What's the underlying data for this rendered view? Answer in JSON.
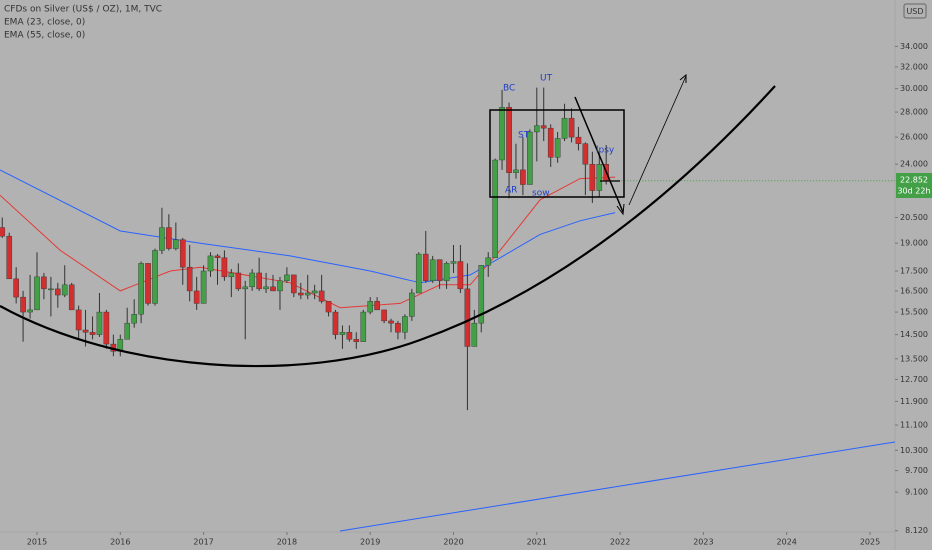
{
  "chart_data": {
    "type": "candlestick",
    "title": "CFDs on Silver (US$ / OZ), 1M, TVC",
    "currency": "USD",
    "log_scale": true,
    "up_color": "#43a047",
    "down_color": "#d32f2f",
    "x": [
      2014.583,
      2014.667,
      2014.75,
      2014.833,
      2014.917,
      2015.0,
      2015.083,
      2015.167,
      2015.25,
      2015.333,
      2015.417,
      2015.5,
      2015.583,
      2015.667,
      2015.75,
      2015.833,
      2015.917,
      2016.0,
      2016.083,
      2016.167,
      2016.25,
      2016.333,
      2016.417,
      2016.5,
      2016.583,
      2016.667,
      2016.75,
      2016.833,
      2016.917,
      2017.0,
      2017.083,
      2017.167,
      2017.25,
      2017.333,
      2017.417,
      2017.5,
      2017.583,
      2017.667,
      2017.75,
      2017.833,
      2017.917,
      2018.0,
      2018.083,
      2018.167,
      2018.25,
      2018.333,
      2018.417,
      2018.5,
      2018.583,
      2018.667,
      2018.75,
      2018.833,
      2018.917,
      2019.0,
      2019.083,
      2019.167,
      2019.25,
      2019.333,
      2019.417,
      2019.5,
      2019.583,
      2019.667,
      2019.75,
      2019.833,
      2019.917,
      2020.0,
      2020.083,
      2020.167,
      2020.25,
      2020.333,
      2020.417,
      2020.5,
      2020.583,
      2020.667,
      2020.75,
      2020.833,
      2020.917,
      2021.0,
      2021.083,
      2021.167,
      2021.25,
      2021.333,
      2021.417,
      2021.5,
      2021.583,
      2021.667,
      2021.75,
      2021.833
    ],
    "open": [
      19.9,
      19.4,
      17.1,
      16.2,
      15.5,
      15.6,
      17.2,
      16.6,
      16.6,
      16.3,
      16.8,
      15.6,
      14.7,
      14.6,
      14.5,
      15.5,
      14.1,
      13.8,
      14.3,
      15.0,
      15.4,
      17.9,
      15.9,
      18.6,
      19.9,
      18.7,
      19.2,
      17.7,
      16.5,
      15.9,
      17.5,
      18.3,
      18.2,
      17.2,
      17.4,
      16.6,
      16.7,
      17.4,
      16.6,
      16.7,
      16.5,
      17.0,
      17.3,
      16.4,
      16.3,
      16.4,
      16.5,
      16.0,
      15.5,
      14.5,
      14.6,
      14.3,
      14.2,
      15.5,
      16.0,
      15.6,
      15.1,
      15.0,
      14.6,
      15.3,
      16.4,
      18.4,
      17.0,
      18.1,
      17.0,
      17.9,
      18.0,
      16.6,
      14.0,
      15.0,
      17.8,
      18.2,
      24.3,
      28.4,
      23.4,
      23.6,
      22.6,
      26.4,
      26.9,
      26.7,
      24.5,
      25.9,
      27.5,
      26.0,
      25.5,
      24.0,
      22.2,
      24.0
    ],
    "high": [
      20.5,
      19.6,
      17.7,
      16.5,
      17.3,
      18.5,
      17.4,
      17.2,
      16.9,
      17.8,
      16.9,
      15.8,
      15.6,
      15.3,
      16.4,
      15.6,
      14.5,
      14.5,
      15.7,
      16.1,
      18.0,
      17.9,
      18.7,
      21.1,
      20.7,
      20.2,
      19.3,
      18.9,
      17.2,
      17.8,
      18.5,
      18.4,
      18.6,
      17.6,
      17.9,
      17.0,
      17.6,
      18.2,
      17.4,
      17.3,
      17.2,
      17.7,
      17.3,
      16.9,
      17.3,
      16.8,
      17.3,
      16.0,
      15.6,
      14.9,
      14.9,
      14.6,
      15.6,
      16.2,
      16.2,
      15.6,
      15.2,
      15.1,
      15.4,
      16.6,
      18.5,
      19.7,
      18.3,
      18.1,
      18.0,
      18.9,
      18.9,
      17.9,
      15.6,
      17.8,
      18.5,
      24.4,
      29.9,
      28.8,
      25.5,
      26.0,
      26.6,
      30.1,
      30.1,
      27.0,
      26.4,
      28.7,
      28.3,
      26.8,
      25.6,
      24.9,
      24.8,
      25.4
    ],
    "low": [
      19.3,
      17.1,
      15.9,
      14.2,
      15.2,
      15.6,
      16.1,
      15.3,
      15.7,
      16.2,
      15.6,
      14.3,
      14.0,
      14.3,
      14.4,
      13.9,
      13.6,
      13.6,
      14.3,
      14.8,
      15.0,
      15.8,
      15.8,
      18.4,
      18.6,
      18.6,
      16.8,
      16.0,
      15.6,
      15.9,
      17.2,
      16.8,
      17.0,
      16.2,
      16.5,
      14.3,
      16.5,
      16.5,
      16.4,
      16.5,
      15.6,
      16.9,
      16.2,
      16.1,
      16.1,
      16.1,
      15.9,
      15.3,
      14.3,
      13.9,
      14.2,
      13.9,
      14.2,
      15.4,
      15.6,
      15.0,
      14.6,
      14.3,
      14.3,
      15.1,
      16.4,
      16.9,
      16.9,
      16.6,
      16.6,
      17.4,
      16.4,
      11.6,
      14.0,
      14.6,
      17.2,
      18.2,
      23.6,
      21.7,
      23.0,
      21.9,
      22.6,
      24.2,
      25.7,
      23.8,
      24.1,
      25.7,
      25.6,
      25.0,
      21.9,
      21.4,
      21.8,
      22.6
    ],
    "close": [
      19.4,
      17.1,
      16.2,
      15.5,
      15.6,
      17.2,
      16.6,
      16.6,
      16.3,
      16.8,
      15.6,
      14.7,
      14.6,
      14.5,
      15.5,
      14.1,
      13.8,
      14.3,
      15.0,
      15.4,
      17.9,
      15.9,
      18.6,
      19.9,
      18.7,
      19.2,
      17.7,
      16.5,
      15.9,
      17.5,
      18.3,
      18.2,
      17.2,
      17.4,
      16.6,
      16.7,
      17.4,
      16.6,
      16.7,
      16.5,
      17.0,
      17.3,
      16.4,
      16.3,
      16.4,
      16.5,
      16.0,
      15.5,
      14.5,
      14.6,
      14.3,
      14.2,
      15.5,
      16.0,
      15.6,
      15.1,
      15.0,
      14.6,
      15.3,
      16.4,
      18.4,
      17.0,
      18.1,
      17.0,
      17.9,
      18.0,
      16.6,
      14.0,
      15.0,
      17.8,
      18.2,
      24.3,
      28.4,
      23.4,
      23.6,
      22.6,
      26.4,
      26.9,
      26.7,
      24.5,
      25.9,
      27.5,
      26.0,
      25.5,
      24.0,
      22.2,
      24.0,
      22.852
    ],
    "overlays": [
      {
        "name": "EMA (23, close, 0)",
        "color": "#e53935",
        "x": [
          2014.556,
          2015.28,
          2016.0,
          2016.6,
          2016.96,
          2018.04,
          2018.64,
          2019.36,
          2019.84,
          2020.2,
          2020.56,
          2021.04,
          2021.52,
          2021.94
        ],
        "values": [
          21.9,
          18.6,
          16.5,
          17.5,
          17.7,
          16.9,
          15.7,
          15.9,
          16.8,
          16.8,
          18.6,
          21.6,
          23.0,
          23.1
        ]
      },
      {
        "name": "EMA (55, close, 0)",
        "color": "#2962ff",
        "x": [
          2014.556,
          2016.0,
          2016.96,
          2018.04,
          2019.0,
          2019.6,
          2020.2,
          2020.56,
          2021.04,
          2021.52,
          2021.94
        ],
        "values": [
          23.6,
          19.7,
          19.0,
          18.3,
          17.5,
          16.9,
          17.3,
          18.2,
          19.5,
          20.3,
          20.8
        ]
      }
    ],
    "last_price": 22.852,
    "countdown": "30d 22h",
    "annotations": [
      "BC",
      "UT",
      "ST",
      "AR",
      "sow",
      "lpsy"
    ],
    "xlim": [
      2014.556,
      2025.3
    ],
    "xticks": [
      2015,
      2016,
      2017,
      2018,
      2019,
      2020,
      2021,
      2022,
      2023,
      2024,
      2025
    ],
    "ylim": [
      7.9,
      39.0
    ],
    "yticks": [
      {
        "value": 34,
        "label": "34.000"
      },
      {
        "value": 32,
        "label": "32.000"
      },
      {
        "value": 30,
        "label": "30.000"
      },
      {
        "value": 28,
        "label": "28.000"
      },
      {
        "value": 26,
        "label": "26.000"
      },
      {
        "value": 24,
        "label": "24.000"
      },
      {
        "value": 20.5,
        "label": "20.500"
      },
      {
        "value": 19,
        "label": "19.000"
      },
      {
        "value": 17.5,
        "label": "17.500"
      },
      {
        "value": 16.5,
        "label": "16.500"
      },
      {
        "value": 15.5,
        "label": "15.500"
      },
      {
        "value": 14.5,
        "label": "14.500"
      },
      {
        "value": 13.5,
        "label": "13.500"
      },
      {
        "value": 12.7,
        "label": "12.700"
      },
      {
        "value": 11.9,
        "label": "11.900"
      },
      {
        "value": 11.1,
        "label": "11.100"
      },
      {
        "value": 10.3,
        "label": "10.300"
      },
      {
        "value": 9.7,
        "label": "9.700"
      },
      {
        "value": 9.1,
        "label": "9.100"
      },
      {
        "value": 8.12,
        "label": "8.120"
      }
    ]
  }
}
